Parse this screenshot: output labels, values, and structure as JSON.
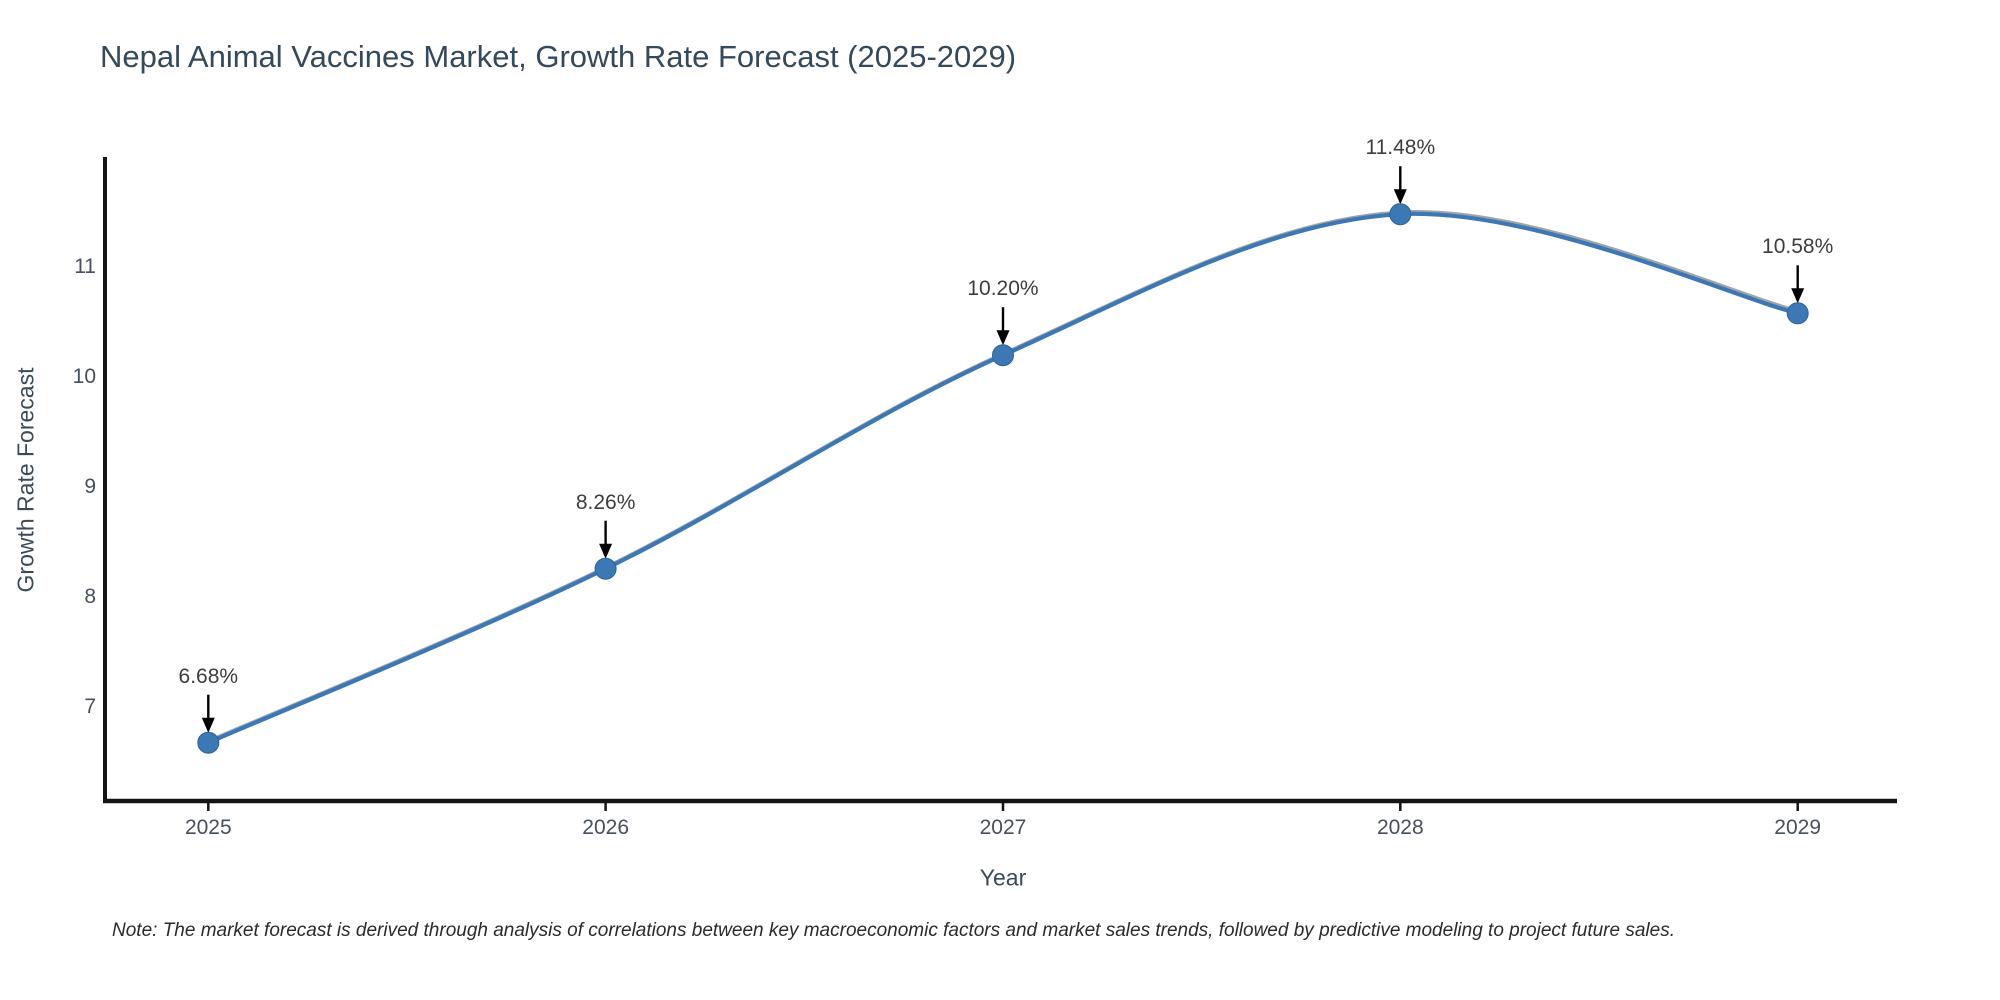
{
  "title": "Nepal Animal Vaccines Market, Growth Rate Forecast (2025-2029)",
  "note": "Note: The market forecast is derived through analysis of correlations between key macroeconomic factors and market sales trends, followed by predictive modeling to project future sales.",
  "chart_data": {
    "type": "line",
    "x": [
      2025,
      2026,
      2027,
      2028,
      2029
    ],
    "values": [
      6.68,
      8.26,
      10.2,
      11.48,
      10.58
    ],
    "point_labels": [
      "6.68%",
      "8.26%",
      "10.20%",
      "11.48%",
      "10.58%"
    ],
    "title": "Nepal Animal Vaccines Market, Growth Rate Forecast (2025-2029)",
    "xlabel": "Year",
    "ylabel": "Growth Rate Forecast",
    "xticks": [
      "2025",
      "2026",
      "2027",
      "2028",
      "2029"
    ],
    "yticks": [
      7,
      8,
      9,
      10,
      11
    ],
    "xlim": [
      2024.74,
      2029.25
    ],
    "ylim": [
      6.15,
      12.0
    ],
    "grid": false,
    "legend_position": "none",
    "line_color": "#3c79b4",
    "marker_color": "#3c79b4",
    "marker_edge_color": "#2e6399",
    "axis_color": "#141414",
    "arrow_color": "#000000",
    "background_color": "#ffffff"
  }
}
